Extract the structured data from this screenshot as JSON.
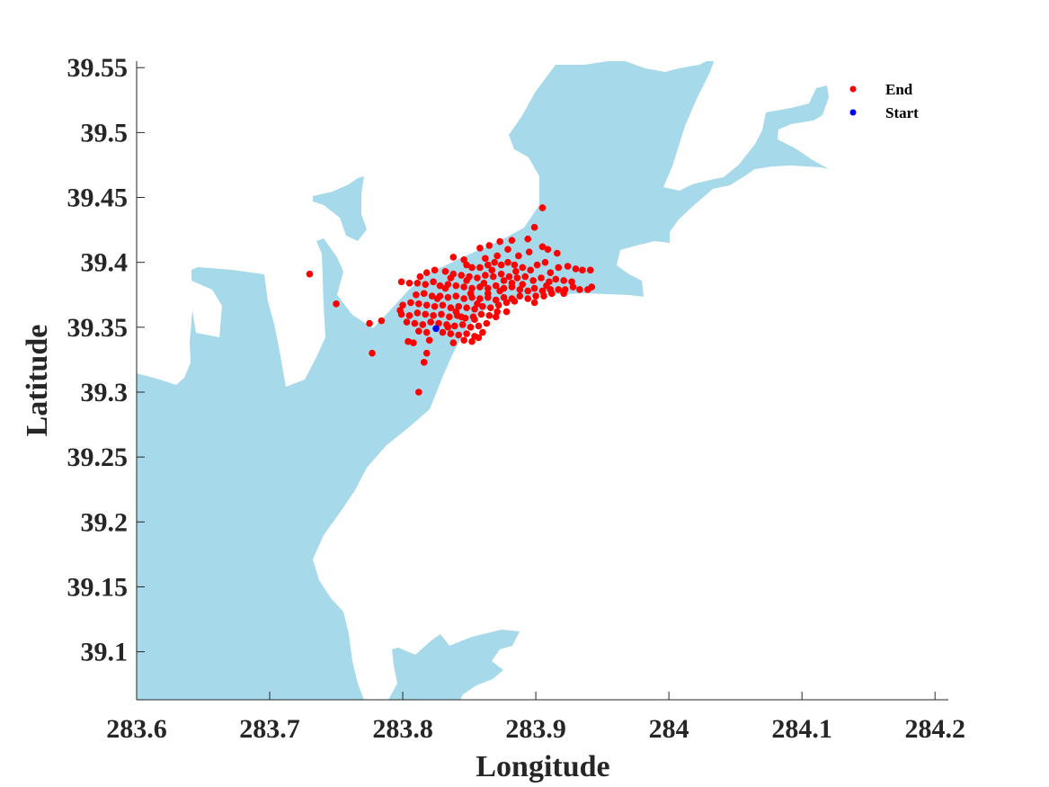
{
  "chart_data": {
    "type": "scatter",
    "xlabel": "Longitude",
    "ylabel": "Latitude",
    "xlim": [
      283.6,
      284.21
    ],
    "ylim": [
      39.063,
      39.555
    ],
    "xticks": [
      "283.6",
      "283.7",
      "283.8",
      "283.9",
      "284",
      "284.1",
      "284.2"
    ],
    "yticks": [
      "39.1",
      "39.15",
      "39.2",
      "39.25",
      "39.3",
      "39.35",
      "39.4",
      "39.45",
      "39.5",
      "39.55"
    ],
    "legend_position": "top-right",
    "water_color": "#a6d9ea",
    "series": [
      {
        "name": "End",
        "color": "#ff0000",
        "points": [
          [
            283.905,
            39.442
          ],
          [
            283.899,
            39.427
          ],
          [
            283.882,
            39.417
          ],
          [
            283.873,
            39.416
          ],
          [
            283.894,
            39.418
          ],
          [
            283.865,
            39.413
          ],
          [
            283.858,
            39.411
          ],
          [
            283.879,
            39.41
          ],
          [
            283.895,
            39.408
          ],
          [
            283.905,
            39.412
          ],
          [
            283.909,
            39.41
          ],
          [
            283.916,
            39.407
          ],
          [
            283.887,
            39.405
          ],
          [
            283.871,
            39.405
          ],
          [
            283.862,
            39.403
          ],
          [
            283.846,
            39.402
          ],
          [
            283.838,
            39.404
          ],
          [
            283.848,
            39.398
          ],
          [
            283.852,
            39.396
          ],
          [
            283.858,
            39.396
          ],
          [
            283.864,
            39.398
          ],
          [
            283.869,
            39.4
          ],
          [
            283.874,
            39.398
          ],
          [
            283.879,
            39.4
          ],
          [
            283.884,
            39.398
          ],
          [
            283.89,
            39.396
          ],
          [
            283.896,
            39.394
          ],
          [
            283.901,
            39.398
          ],
          [
            283.907,
            39.4
          ],
          [
            283.911,
            39.392
          ],
          [
            283.917,
            39.396
          ],
          [
            283.924,
            39.397
          ],
          [
            283.93,
            39.395
          ],
          [
            283.935,
            39.394
          ],
          [
            283.941,
            39.394
          ],
          [
            283.824,
            39.394
          ],
          [
            283.818,
            39.392
          ],
          [
            283.813,
            39.389
          ],
          [
            283.832,
            39.393
          ],
          [
            283.838,
            39.391
          ],
          [
            283.844,
            39.39
          ],
          [
            283.85,
            39.389
          ],
          [
            283.856,
            39.388
          ],
          [
            283.862,
            39.39
          ],
          [
            283.868,
            39.389
          ],
          [
            283.874,
            39.391
          ],
          [
            283.88,
            39.389
          ],
          [
            283.886,
            39.388
          ],
          [
            283.892,
            39.389
          ],
          [
            283.898,
            39.386
          ],
          [
            283.904,
            39.388
          ],
          [
            283.91,
            39.385
          ],
          [
            283.915,
            39.387
          ],
          [
            283.921,
            39.386
          ],
          [
            283.927,
            39.385
          ],
          [
            283.799,
            39.385
          ],
          [
            283.805,
            39.384
          ],
          [
            283.811,
            39.384
          ],
          [
            283.817,
            39.383
          ],
          [
            283.823,
            39.385
          ],
          [
            283.828,
            39.382
          ],
          [
            283.834,
            39.383
          ],
          [
            283.84,
            39.382
          ],
          [
            283.846,
            39.381
          ],
          [
            283.852,
            39.38
          ],
          [
            283.858,
            39.381
          ],
          [
            283.864,
            39.38
          ],
          [
            283.87,
            39.382
          ],
          [
            283.876,
            39.38
          ],
          [
            283.882,
            39.381
          ],
          [
            283.888,
            39.379
          ],
          [
            283.894,
            39.378
          ],
          [
            283.899,
            39.38
          ],
          [
            283.905,
            39.378
          ],
          [
            283.911,
            39.379
          ],
          [
            283.917,
            39.379
          ],
          [
            283.922,
            39.379
          ],
          [
            283.928,
            39.381
          ],
          [
            283.933,
            39.379
          ],
          [
            283.939,
            39.379
          ],
          [
            283.942,
            39.381
          ],
          [
            283.81,
            39.375
          ],
          [
            283.816,
            39.376
          ],
          [
            283.822,
            39.374
          ],
          [
            283.828,
            39.374
          ],
          [
            283.834,
            39.373
          ],
          [
            283.84,
            39.374
          ],
          [
            283.846,
            39.372
          ],
          [
            283.852,
            39.373
          ],
          [
            283.858,
            39.372
          ],
          [
            283.864,
            39.373
          ],
          [
            283.87,
            39.371
          ],
          [
            283.876,
            39.373
          ],
          [
            283.882,
            39.372
          ],
          [
            283.888,
            39.374
          ],
          [
            283.894,
            39.372
          ],
          [
            283.9,
            39.374
          ],
          [
            283.906,
            39.374
          ],
          [
            283.912,
            39.376
          ],
          [
            283.921,
            39.376
          ],
          [
            283.8,
            39.367
          ],
          [
            283.806,
            39.369
          ],
          [
            283.812,
            39.368
          ],
          [
            283.818,
            39.367
          ],
          [
            283.824,
            39.366
          ],
          [
            283.83,
            39.367
          ],
          [
            283.836,
            39.365
          ],
          [
            283.842,
            39.366
          ],
          [
            283.848,
            39.365
          ],
          [
            283.854,
            39.364
          ],
          [
            283.86,
            39.366
          ],
          [
            283.866,
            39.365
          ],
          [
            283.872,
            39.367
          ],
          [
            283.878,
            39.369
          ],
          [
            283.884,
            39.37
          ],
          [
            283.799,
            39.36
          ],
          [
            283.805,
            39.359
          ],
          [
            283.811,
            39.361
          ],
          [
            283.817,
            39.36
          ],
          [
            283.823,
            39.359
          ],
          [
            283.829,
            39.36
          ],
          [
            283.835,
            39.358
          ],
          [
            283.841,
            39.359
          ],
          [
            283.847,
            39.357
          ],
          [
            283.853,
            39.358
          ],
          [
            283.859,
            39.36
          ],
          [
            283.865,
            39.359
          ],
          [
            283.871,
            39.362
          ],
          [
            283.798,
            39.363
          ],
          [
            283.803,
            39.354
          ],
          [
            283.809,
            39.353
          ],
          [
            283.815,
            39.352
          ],
          [
            283.821,
            39.354
          ],
          [
            283.827,
            39.353
          ],
          [
            283.833,
            39.352
          ],
          [
            283.839,
            39.351
          ],
          [
            283.845,
            39.352
          ],
          [
            283.851,
            39.35
          ],
          [
            283.857,
            39.351
          ],
          [
            283.863,
            39.353
          ],
          [
            283.812,
            39.347
          ],
          [
            283.818,
            39.346
          ],
          [
            283.83,
            39.346
          ],
          [
            283.836,
            39.345
          ],
          [
            283.842,
            39.344
          ],
          [
            283.848,
            39.345
          ],
          [
            283.854,
            39.343
          ],
          [
            283.86,
            39.346
          ],
          [
            283.804,
            39.339
          ],
          [
            283.808,
            39.338
          ],
          [
            283.82,
            39.34
          ],
          [
            283.838,
            39.338
          ],
          [
            283.846,
            39.34
          ],
          [
            283.852,
            39.339
          ],
          [
            283.857,
            39.342
          ],
          [
            283.818,
            39.33
          ],
          [
            283.816,
            39.323
          ],
          [
            283.812,
            39.3
          ],
          [
            283.775,
            39.353
          ],
          [
            283.784,
            39.355
          ],
          [
            283.777,
            39.33
          ],
          [
            283.75,
            39.368
          ],
          [
            283.73,
            39.391
          ],
          [
            283.834,
            39.35
          ],
          [
            283.844,
            39.358
          ],
          [
            283.854,
            39.356
          ],
          [
            283.826,
            39.372
          ],
          [
            283.861,
            39.384
          ],
          [
            283.867,
            39.394
          ],
          [
            283.876,
            39.386
          ],
          [
            283.89,
            39.383
          ],
          [
            283.856,
            39.368
          ],
          [
            283.84,
            39.362
          ],
          [
            283.832,
            39.38
          ],
          [
            283.848,
            39.386
          ],
          [
            283.873,
            39.378
          ],
          [
            283.885,
            39.393
          ],
          [
            283.87,
            39.358
          ],
          [
            283.851,
            39.376
          ],
          [
            283.836,
            39.388
          ],
          [
            283.878,
            39.362
          ],
          [
            283.899,
            39.369
          ],
          [
            283.908,
            39.382
          ],
          [
            283.882,
            39.384
          ],
          [
            283.864,
            39.376
          ]
        ]
      },
      {
        "name": "Start",
        "color": "#0000ff",
        "points": [
          [
            283.825,
            39.349
          ]
        ]
      }
    ]
  }
}
